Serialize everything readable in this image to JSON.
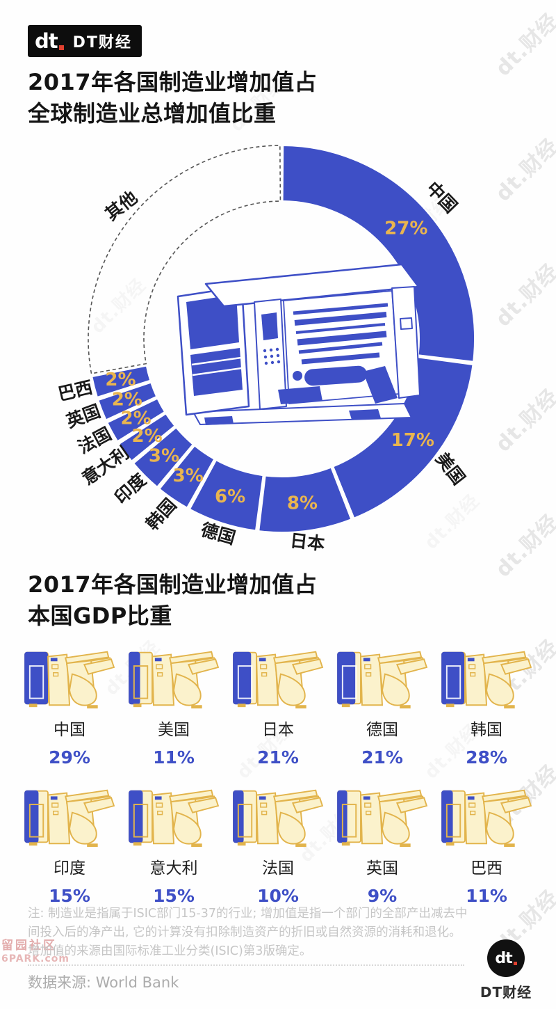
{
  "brand": {
    "logo_mark": "dt",
    "logo_name": "DT财经",
    "footer_name": "DT财经"
  },
  "section1": {
    "title": "2017年各国制造业增加值占\n全球制造业总增加值比重"
  },
  "section2": {
    "title": "2017年各国制造业增加值占\n本国GDP比重"
  },
  "chart_data": [
    {
      "type": "pie",
      "subtype": "donut",
      "title": "2017年各国制造业增加值占全球制造业总增加值比重",
      "unit": "%",
      "start_angle": "12-o'clock",
      "direction": "clockwise",
      "segments": [
        {
          "label": "中国",
          "value": 27,
          "show_value": true
        },
        {
          "label": "美国",
          "value": 17,
          "show_value": true
        },
        {
          "label": "日本",
          "value": 8,
          "show_value": true
        },
        {
          "label": "德国",
          "value": 6,
          "show_value": true
        },
        {
          "label": "韩国",
          "value": 3,
          "show_value": true
        },
        {
          "label": "印度",
          "value": 3,
          "show_value": true
        },
        {
          "label": "意大利",
          "value": 2,
          "show_value": true
        },
        {
          "label": "法国",
          "value": 2,
          "show_value": true
        },
        {
          "label": "英国",
          "value": 2,
          "show_value": true
        },
        {
          "label": "巴西",
          "value": 2,
          "show_value": true
        },
        {
          "label": "其他",
          "value": 28,
          "show_value": false,
          "style": "dashed-outline"
        }
      ]
    },
    {
      "type": "bar",
      "subtype": "pictogram-grid",
      "title": "2017年各国制造业增加值占本国GDP比重",
      "unit": "%",
      "categories": [
        "中国",
        "美国",
        "日本",
        "德国",
        "韩国",
        "印度",
        "意大利",
        "法国",
        "英国",
        "巴西"
      ],
      "values": [
        29,
        11,
        21,
        21,
        28,
        15,
        15,
        10,
        9,
        11
      ]
    }
  ],
  "footnote": {
    "text": "注: 制造业是指属于ISIC部门15-37的行业; 增加值是指一个部门的全部产出减去中间投入后的净产出, 它的计算没有扣除制造资产的折旧或自然资源的消耗和退化。增加值的来源由国际标准工业分类(ISIC)第3版确定。"
  },
  "source": {
    "text": "数据来源: World Bank"
  },
  "watermarks": {
    "corner": "dt.财经",
    "site_line1": "留园社区",
    "site_line2": "6PARK.com"
  },
  "colors": {
    "primary_blue": "#3E4FC6",
    "accent_gold": "#E9B54F",
    "machine_cream": "#FBF2CC",
    "machine_gold": "#E2B44C",
    "dashed_gray": "#555555"
  }
}
